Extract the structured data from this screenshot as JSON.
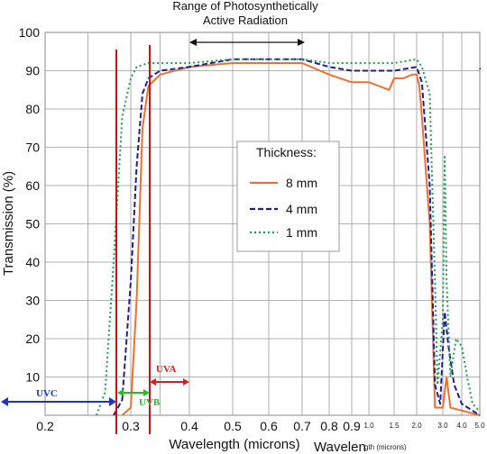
{
  "chart_data": {
    "type": "line",
    "title_lines": [
      "Range of Photosynthetically",
      "Active Radiation"
    ],
    "xlabel": "Wavelength (microns)",
    "xlabel_secondary": "Wavelen",
    "xlabel_secondary_small": "gth (microns)",
    "ylabel": "Transmission (%)",
    "ylim": [
      0,
      100
    ],
    "y_ticks": [
      "0",
      "10",
      "20",
      "30",
      "40",
      "50",
      "60",
      "70",
      "80",
      "90",
      "100"
    ],
    "x_ticks_main": [
      "0.2",
      "0.3",
      "0.4",
      "0.5",
      "0.6",
      "0.7",
      "0.8",
      "0.9"
    ],
    "x_ticks_secondary": [
      "1.0",
      "1.5",
      "2.0",
      "3.0",
      "4.0",
      "5.0"
    ],
    "grid": true,
    "legend": {
      "title": "Thickness:",
      "placement": "center",
      "entries": [
        "8 mm",
        "4 mm",
        "1 mm"
      ]
    },
    "series": [
      {
        "name": "8 mm",
        "color": "#f07030",
        "dash": "solid",
        "points": [
          [
            0.29,
            0
          ],
          [
            0.3,
            2
          ],
          [
            0.31,
            30
          ],
          [
            0.32,
            75
          ],
          [
            0.33,
            86
          ],
          [
            0.35,
            89
          ],
          [
            0.4,
            91
          ],
          [
            0.5,
            92
          ],
          [
            0.6,
            92
          ],
          [
            0.7,
            92
          ],
          [
            0.8,
            89
          ],
          [
            0.9,
            87
          ],
          [
            1.0,
            87
          ],
          [
            1.2,
            86
          ],
          [
            1.4,
            85
          ],
          [
            1.5,
            88
          ],
          [
            1.7,
            88
          ],
          [
            1.9,
            89
          ],
          [
            2.0,
            89
          ],
          [
            2.1,
            86
          ],
          [
            2.2,
            78
          ],
          [
            2.5,
            50
          ],
          [
            2.7,
            2
          ],
          [
            3.0,
            2
          ],
          [
            3.2,
            10
          ],
          [
            3.4,
            2
          ],
          [
            5.0,
            0
          ]
        ]
      },
      {
        "name": "4 mm",
        "color": "#1f1f8f",
        "dash": "dashed",
        "points": [
          [
            0.28,
            0
          ],
          [
            0.29,
            4
          ],
          [
            0.3,
            35
          ],
          [
            0.31,
            65
          ],
          [
            0.32,
            84
          ],
          [
            0.33,
            88
          ],
          [
            0.35,
            90
          ],
          [
            0.4,
            91
          ],
          [
            0.5,
            93
          ],
          [
            0.6,
            93
          ],
          [
            0.7,
            93
          ],
          [
            0.8,
            91
          ],
          [
            0.9,
            90
          ],
          [
            1.0,
            90
          ],
          [
            1.5,
            90
          ],
          [
            2.0,
            91
          ],
          [
            2.2,
            87
          ],
          [
            2.5,
            60
          ],
          [
            2.7,
            8
          ],
          [
            2.9,
            3
          ],
          [
            3.1,
            27
          ],
          [
            3.3,
            18
          ],
          [
            3.6,
            8
          ],
          [
            4.0,
            3
          ],
          [
            5.0,
            0
          ]
        ]
      },
      {
        "name": "1 mm",
        "color": "#1f9f4f",
        "dash": "dotted",
        "points": [
          [
            0.26,
            0
          ],
          [
            0.27,
            6
          ],
          [
            0.28,
            40
          ],
          [
            0.29,
            78
          ],
          [
            0.3,
            88
          ],
          [
            0.31,
            91
          ],
          [
            0.33,
            92
          ],
          [
            0.4,
            92
          ],
          [
            0.5,
            93
          ],
          [
            0.6,
            93
          ],
          [
            0.7,
            93
          ],
          [
            0.8,
            92
          ],
          [
            0.9,
            92
          ],
          [
            1.0,
            92
          ],
          [
            1.5,
            92
          ],
          [
            2.0,
            93
          ],
          [
            2.2,
            91
          ],
          [
            2.5,
            84
          ],
          [
            2.7,
            35
          ],
          [
            2.8,
            8
          ],
          [
            3.0,
            25
          ],
          [
            3.1,
            68
          ],
          [
            3.2,
            35
          ],
          [
            3.4,
            10
          ],
          [
            3.7,
            20
          ],
          [
            4.0,
            18
          ],
          [
            4.3,
            10
          ],
          [
            4.6,
            3
          ],
          [
            5.0,
            1
          ]
        ]
      }
    ],
    "annotations": [
      {
        "label": "UVC",
        "color": "#1f33c0"
      },
      {
        "label": "UVB",
        "color": "#22c022"
      },
      {
        "label": "UVA",
        "color": "#d02020"
      }
    ],
    "par_range": [
      0.4,
      0.7
    ]
  }
}
